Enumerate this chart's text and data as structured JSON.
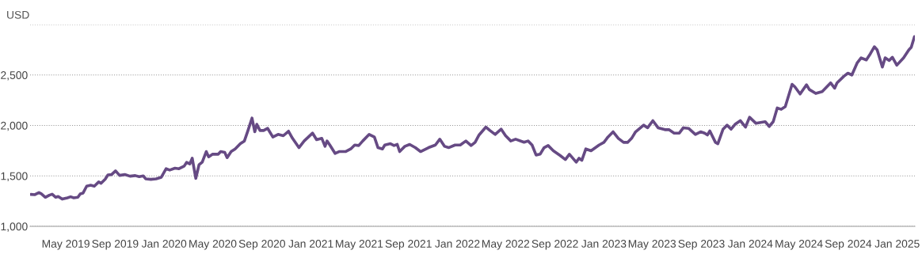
{
  "chart_data": {
    "type": "line",
    "ylabel": "USD",
    "x": [
      "2019-02-03",
      "2019-02-13",
      "2019-02-23",
      "2019-03-01",
      "2019-03-11",
      "2019-03-21",
      "2019-03-28",
      "2019-04-06",
      "2019-04-12",
      "2019-04-22",
      "2019-05-05",
      "2019-05-13",
      "2019-05-21",
      "2019-05-31",
      "2019-06-06",
      "2019-06-13",
      "2019-06-22",
      "2019-07-02",
      "2019-07-11",
      "2019-07-22",
      "2019-07-28",
      "2019-08-07",
      "2019-08-14",
      "2019-08-23",
      "2019-09-02",
      "2019-09-12",
      "2019-09-25",
      "2019-10-08",
      "2019-10-21",
      "2019-10-31",
      "2019-11-10",
      "2019-11-16",
      "2019-11-29",
      "2019-12-12",
      "2019-12-25",
      "2020-01-06",
      "2020-01-15",
      "2020-01-28",
      "2020-02-07",
      "2020-02-20",
      "2020-02-26",
      "2020-03-05",
      "2020-03-11",
      "2020-03-20",
      "2020-03-28",
      "2020-04-05",
      "2020-04-15",
      "2020-04-21",
      "2020-05-01",
      "2020-05-15",
      "2020-05-21",
      "2020-05-31",
      "2020-06-06",
      "2020-06-16",
      "2020-06-26",
      "2020-07-09",
      "2020-07-19",
      "2020-07-28",
      "2020-08-07",
      "2020-08-14",
      "2020-08-19",
      "2020-08-27",
      "2020-09-05",
      "2020-09-15",
      "2020-09-28",
      "2020-10-11",
      "2020-10-24",
      "2020-11-06",
      "2020-11-16",
      "2020-12-02",
      "2020-12-15",
      "2021-01-05",
      "2021-01-15",
      "2021-01-28",
      "2021-02-05",
      "2021-02-10",
      "2021-02-17",
      "2021-03-02",
      "2021-03-12",
      "2021-03-28",
      "2021-04-10",
      "2021-04-20",
      "2021-04-30",
      "2021-05-10",
      "2021-05-26",
      "2021-06-08",
      "2021-06-17",
      "2021-06-28",
      "2021-07-04",
      "2021-07-18",
      "2021-07-27",
      "2021-08-04",
      "2021-08-10",
      "2021-08-23",
      "2021-09-04",
      "2021-09-18",
      "2021-10-01",
      "2021-10-21",
      "2021-11-07",
      "2021-11-18",
      "2021-11-30",
      "2021-12-10",
      "2021-12-26",
      "2022-01-08",
      "2022-01-22",
      "2022-02-04",
      "2022-02-14",
      "2022-02-24",
      "2022-03-13",
      "2022-03-23",
      "2022-04-05",
      "2022-04-20",
      "2022-05-01",
      "2022-05-14",
      "2022-05-26",
      "2022-06-16",
      "2022-06-26",
      "2022-07-06",
      "2022-07-16",
      "2022-07-26",
      "2022-08-05",
      "2022-08-15",
      "2022-08-28",
      "2022-09-14",
      "2022-09-27",
      "2022-10-07",
      "2022-10-24",
      "2022-10-31",
      "2022-11-07",
      "2022-11-17",
      "2022-11-30",
      "2022-12-20",
      "2023-01-01",
      "2023-01-11",
      "2023-01-24",
      "2023-02-06",
      "2023-02-19",
      "2023-03-01",
      "2023-03-11",
      "2023-03-21",
      "2023-04-10",
      "2023-04-20",
      "2023-05-03",
      "2023-05-16",
      "2023-06-02",
      "2023-06-12",
      "2023-06-25",
      "2023-07-08",
      "2023-07-18",
      "2023-07-31",
      "2023-08-17",
      "2023-08-30",
      "2023-09-09",
      "2023-09-16",
      "2023-09-22",
      "2023-10-06",
      "2023-10-12",
      "2023-10-25",
      "2023-11-04",
      "2023-11-14",
      "2023-11-24",
      "2023-12-07",
      "2023-12-20",
      "2023-12-30",
      "2024-01-15",
      "2024-02-07",
      "2024-02-17",
      "2024-02-27",
      "2024-03-08",
      "2024-03-18",
      "2024-03-28",
      "2024-04-14",
      "2024-04-21",
      "2024-05-04",
      "2024-05-20",
      "2024-05-27",
      "2024-06-12",
      "2024-06-28",
      "2024-07-19",
      "2024-07-29",
      "2024-08-04",
      "2024-08-21",
      "2024-08-31",
      "2024-09-10",
      "2024-09-23",
      "2024-10-03",
      "2024-10-16",
      "2024-10-26",
      "2024-11-05",
      "2024-11-12",
      "2024-11-25",
      "2024-12-02",
      "2024-12-12",
      "2024-12-20",
      "2024-12-31",
      "2025-01-17",
      "2025-01-30",
      "2025-02-05",
      "2025-02-13"
    ],
    "series": [
      {
        "color": "#664a84",
        "values": [
          1317,
          1314,
          1335,
          1322,
          1288,
          1309,
          1319,
          1288,
          1296,
          1270,
          1283,
          1293,
          1283,
          1288,
          1322,
          1330,
          1398,
          1408,
          1398,
          1440,
          1427,
          1466,
          1510,
          1513,
          1550,
          1505,
          1513,
          1497,
          1503,
          1492,
          1500,
          1471,
          1466,
          1471,
          1487,
          1571,
          1558,
          1576,
          1571,
          1597,
          1634,
          1618,
          1675,
          1476,
          1610,
          1636,
          1741,
          1689,
          1715,
          1715,
          1741,
          1733,
          1681,
          1741,
          1767,
          1819,
          1846,
          1950,
          2073,
          1937,
          2011,
          1950,
          1950,
          1971,
          1885,
          1911,
          1898,
          1943,
          1872,
          1780,
          1846,
          1924,
          1859,
          1872,
          1793,
          1846,
          1806,
          1723,
          1741,
          1741,
          1767,
          1806,
          1801,
          1846,
          1911,
          1885,
          1780,
          1767,
          1806,
          1819,
          1801,
          1812,
          1741,
          1793,
          1812,
          1780,
          1741,
          1780,
          1806,
          1864,
          1793,
          1780,
          1806,
          1806,
          1846,
          1801,
          1833,
          1906,
          1984,
          1950,
          1911,
          1963,
          1898,
          1846,
          1864,
          1833,
          1846,
          1806,
          1707,
          1715,
          1780,
          1801,
          1749,
          1702,
          1662,
          1715,
          1636,
          1675,
          1654,
          1767,
          1749,
          1806,
          1832,
          1885,
          1937,
          1872,
          1832,
          1832,
          1872,
          1937,
          2003,
          1977,
          2047,
          1977,
          1958,
          1958,
          1924,
          1924,
          1977,
          1971,
          1911,
          1937,
          1924,
          1906,
          1945,
          1832,
          1819,
          1963,
          2003,
          1963,
          2011,
          2047,
          1984,
          2081,
          2021,
          2037,
          1990,
          2037,
          2173,
          2160,
          2186,
          2408,
          2382,
          2312,
          2403,
          2356,
          2317,
          2335,
          2422,
          2369,
          2422,
          2487,
          2518,
          2500,
          2618,
          2670,
          2649,
          2710,
          2780,
          2749,
          2579,
          2670,
          2644,
          2676,
          2597,
          2670,
          2749,
          2775,
          2880
        ]
      }
    ],
    "xlim": [
      "2019-02-01",
      "2025-02-14"
    ],
    "xticks": [
      {
        "value": "2019-05-01",
        "label": "May 2019"
      },
      {
        "value": "2019-09-01",
        "label": "Sep 2019"
      },
      {
        "value": "2020-01-01",
        "label": "Jan 2020"
      },
      {
        "value": "2020-05-01",
        "label": "May 2020"
      },
      {
        "value": "2020-09-01",
        "label": "Sep 2020"
      },
      {
        "value": "2021-01-01",
        "label": "Jan 2021"
      },
      {
        "value": "2021-05-01",
        "label": "May 2021"
      },
      {
        "value": "2021-09-01",
        "label": "Sep 2021"
      },
      {
        "value": "2022-01-01",
        "label": "Jan 2022"
      },
      {
        "value": "2022-05-01",
        "label": "May 2022"
      },
      {
        "value": "2022-09-01",
        "label": "Sep 2022"
      },
      {
        "value": "2023-01-01",
        "label": "Jan 2023"
      },
      {
        "value": "2023-05-01",
        "label": "May 2023"
      },
      {
        "value": "2023-09-01",
        "label": "Sep 2023"
      },
      {
        "value": "2024-01-01",
        "label": "Jan 2024"
      },
      {
        "value": "2024-05-01",
        "label": "May 2024"
      },
      {
        "value": "2024-09-01",
        "label": "Sep 2024"
      },
      {
        "value": "2025-01-01",
        "label": "Jan 2025"
      }
    ],
    "ylim": [
      1000,
      3000
    ],
    "yticks": [
      {
        "value": 1000,
        "label": "1,000"
      },
      {
        "value": 1500,
        "label": "1,500"
      },
      {
        "value": 2000,
        "label": "2,000"
      },
      {
        "value": 2500,
        "label": "2,500"
      },
      {
        "value": 3000,
        "label": null
      }
    ],
    "grid": "y",
    "marker": "none",
    "line_style": "solid"
  }
}
